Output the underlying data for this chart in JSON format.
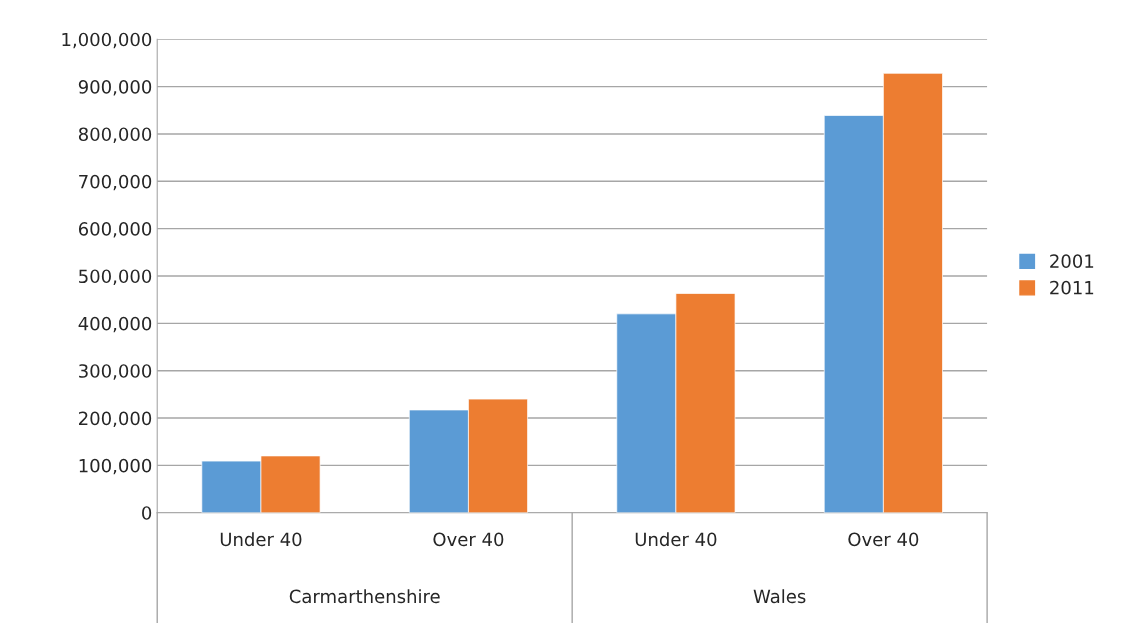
{
  "chart_data": {
    "type": "bar",
    "categories": [
      "Under 40",
      "Over 40",
      "Under 40",
      "Over 40"
    ],
    "series": [
      {
        "name": "2001",
        "color": "#5b9bd5",
        "values": [
          109000,
          217000,
          420000,
          839000
        ]
      },
      {
        "name": "2011",
        "color": "#ed7d31",
        "values": [
          120000,
          240000,
          463000,
          928000
        ]
      }
    ],
    "annotations": [
      "Carmarthenshire",
      "Wales"
    ],
    "ylim": [
      0,
      1000000
    ],
    "yticks": [
      {
        "value": 0,
        "label": "0"
      },
      {
        "value": 100000,
        "label": "100,000"
      },
      {
        "value": 200000,
        "label": "200,000"
      },
      {
        "value": 300000,
        "label": "300,000"
      },
      {
        "value": 400000,
        "label": "400,000"
      },
      {
        "value": 500000,
        "label": "500,000"
      },
      {
        "value": 600000,
        "label": "600,000"
      },
      {
        "value": 700000,
        "label": "700,000"
      },
      {
        "value": 800000,
        "label": "800,000"
      },
      {
        "value": 900000,
        "label": "900,000"
      },
      {
        "value": 1000000,
        "label": "1,000,000"
      }
    ],
    "grid": "y",
    "legend": "right"
  }
}
